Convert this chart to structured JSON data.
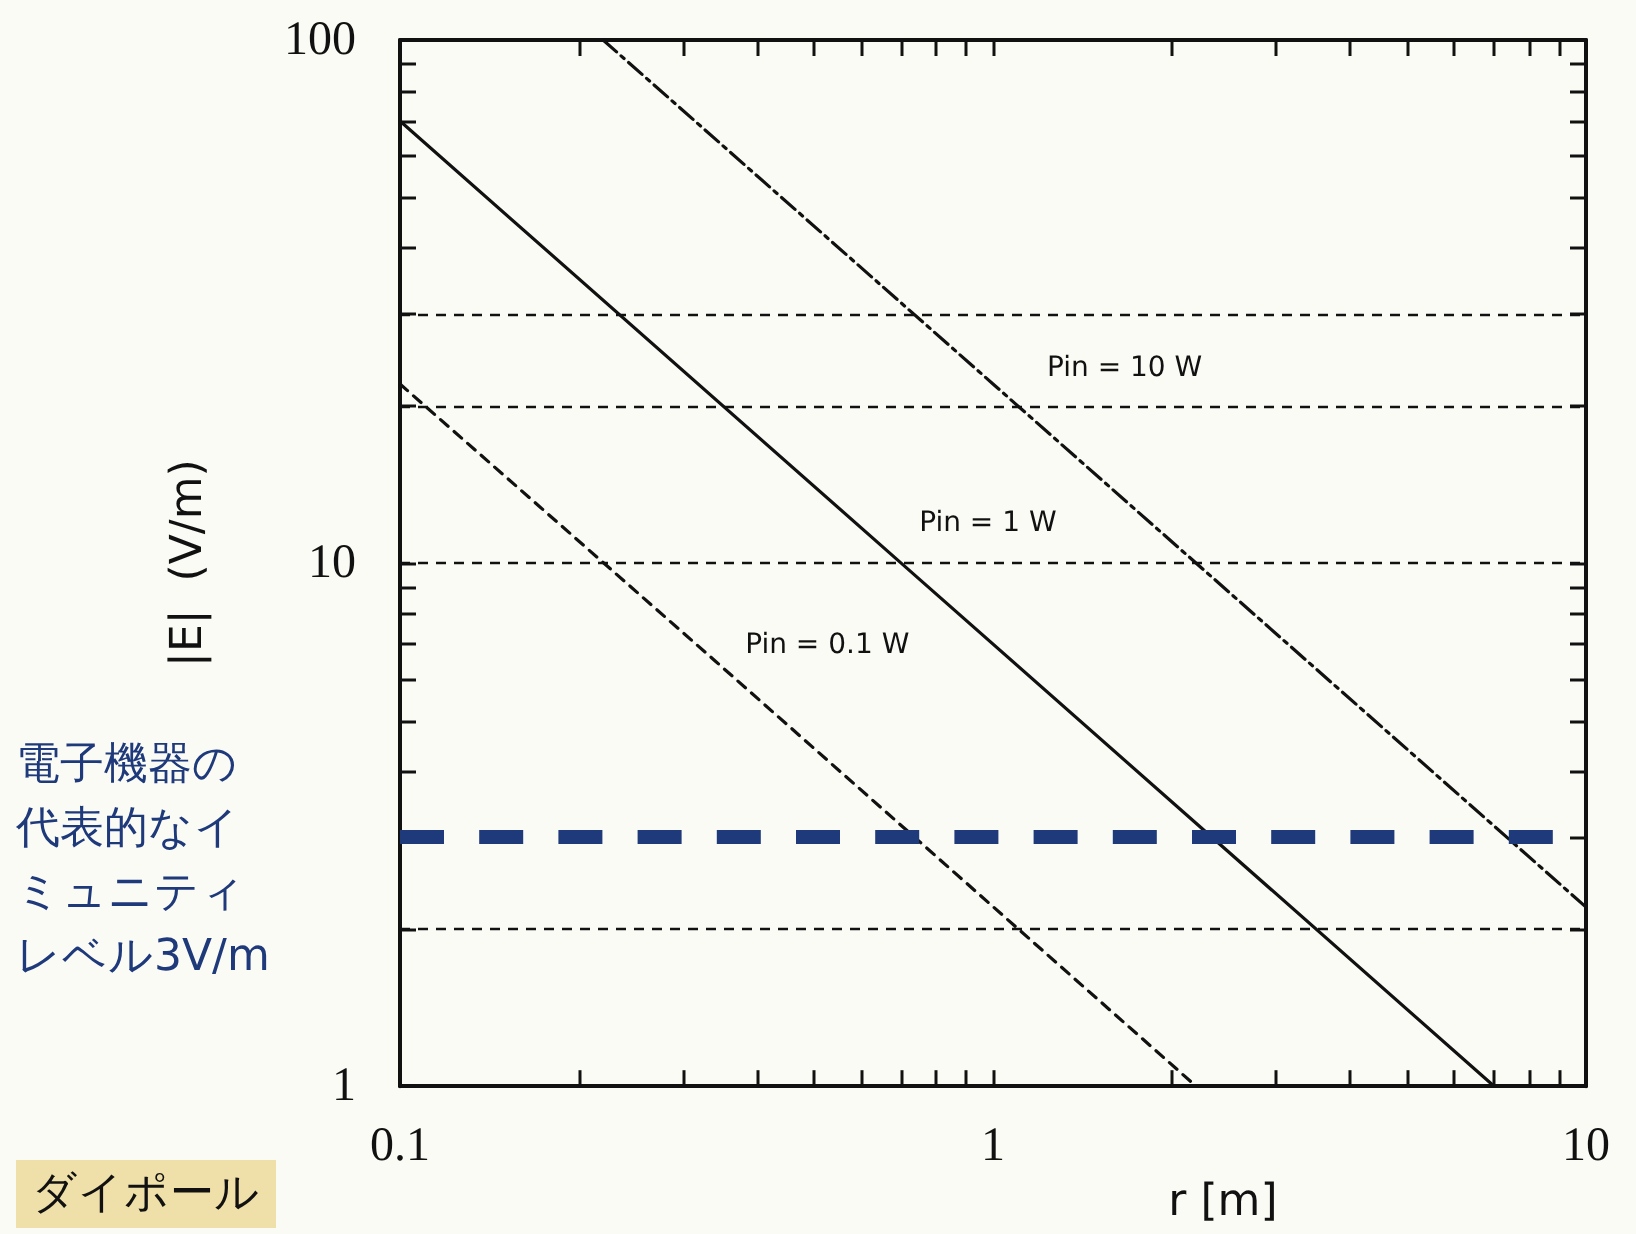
{
  "chart_data": {
    "type": "line",
    "xlabel": "r [m]",
    "ylabel": "|E|  (V/m)",
    "log": "xy",
    "grid": false,
    "legend": false,
    "marker": "none",
    "xlim": [
      0.1,
      10
    ],
    "ylim": [
      1,
      100
    ],
    "xticks": [
      0.1,
      {
        "value": 0.2,
        "label": null
      },
      {
        "value": 0.3,
        "label": null
      },
      {
        "value": 0.4,
        "label": null
      },
      {
        "value": 0.5,
        "label": null
      },
      {
        "value": 0.6,
        "label": null
      },
      {
        "value": 0.7,
        "label": null
      },
      {
        "value": 0.8,
        "label": null
      },
      {
        "value": 0.9,
        "label": null
      },
      1,
      {
        "value": 2,
        "label": null
      },
      {
        "value": 3,
        "label": null
      },
      {
        "value": 4,
        "label": null
      },
      {
        "value": 5,
        "label": null
      },
      {
        "value": 6,
        "label": null
      },
      {
        "value": 7,
        "label": null
      },
      {
        "value": 8,
        "label": null
      },
      {
        "value": 9,
        "label": null
      },
      10
    ],
    "yticks": [
      1,
      {
        "value": 2,
        "label": null
      },
      {
        "value": 3,
        "label": null
      },
      {
        "value": 4,
        "label": null
      },
      {
        "value": 5,
        "label": null
      },
      {
        "value": 6,
        "label": null
      },
      {
        "value": 7,
        "label": null
      },
      {
        "value": 8,
        "label": null
      },
      {
        "value": 9,
        "label": null
      },
      10,
      {
        "value": 20,
        "label": null
      },
      {
        "value": 30,
        "label": null
      },
      {
        "value": 40,
        "label": null
      },
      {
        "value": 50,
        "label": null
      },
      {
        "value": 60,
        "label": null
      },
      {
        "value": 70,
        "label": null
      },
      {
        "value": 80,
        "label": null
      },
      {
        "value": 90,
        "label": null
      },
      100
    ],
    "series": [
      {
        "name": "Pin = 10 W",
        "color": "#111111",
        "line_style": "dashdot",
        "x": [
          0.22,
          1,
          10
        ],
        "values": [
          100,
          22,
          2.2
        ]
      },
      {
        "name": "Pin = 1 W",
        "color": "#111111",
        "line_style": "solid",
        "x": [
          0.1,
          0.7,
          7
        ],
        "values": [
          70,
          10,
          1
        ]
      },
      {
        "name": "Pin = 0.1 W",
        "color": "#111111",
        "line_style": "dashed",
        "x": [
          0.1,
          0.34,
          2.2
        ],
        "values": [
          22,
          6.5,
          1
        ]
      }
    ],
    "ref_lines": [
      {
        "axis": "y",
        "value": 30,
        "color": "#111111",
        "line_style": "dashed"
      },
      {
        "axis": "y",
        "value": 20,
        "color": "#111111",
        "line_style": "dashed"
      },
      {
        "axis": "y",
        "value": 10,
        "color": "#111111",
        "line_style": "dashed"
      },
      {
        "axis": "y",
        "value": 2,
        "color": "#111111",
        "line_style": "dashed"
      },
      {
        "axis": "y",
        "value": 3,
        "color": "#1f3a7a",
        "line_style": "dashed",
        "label": "電子機器の代表的なイミュニティレベル3V/m"
      }
    ],
    "annotations": [
      "ダイポール"
    ]
  }
}
